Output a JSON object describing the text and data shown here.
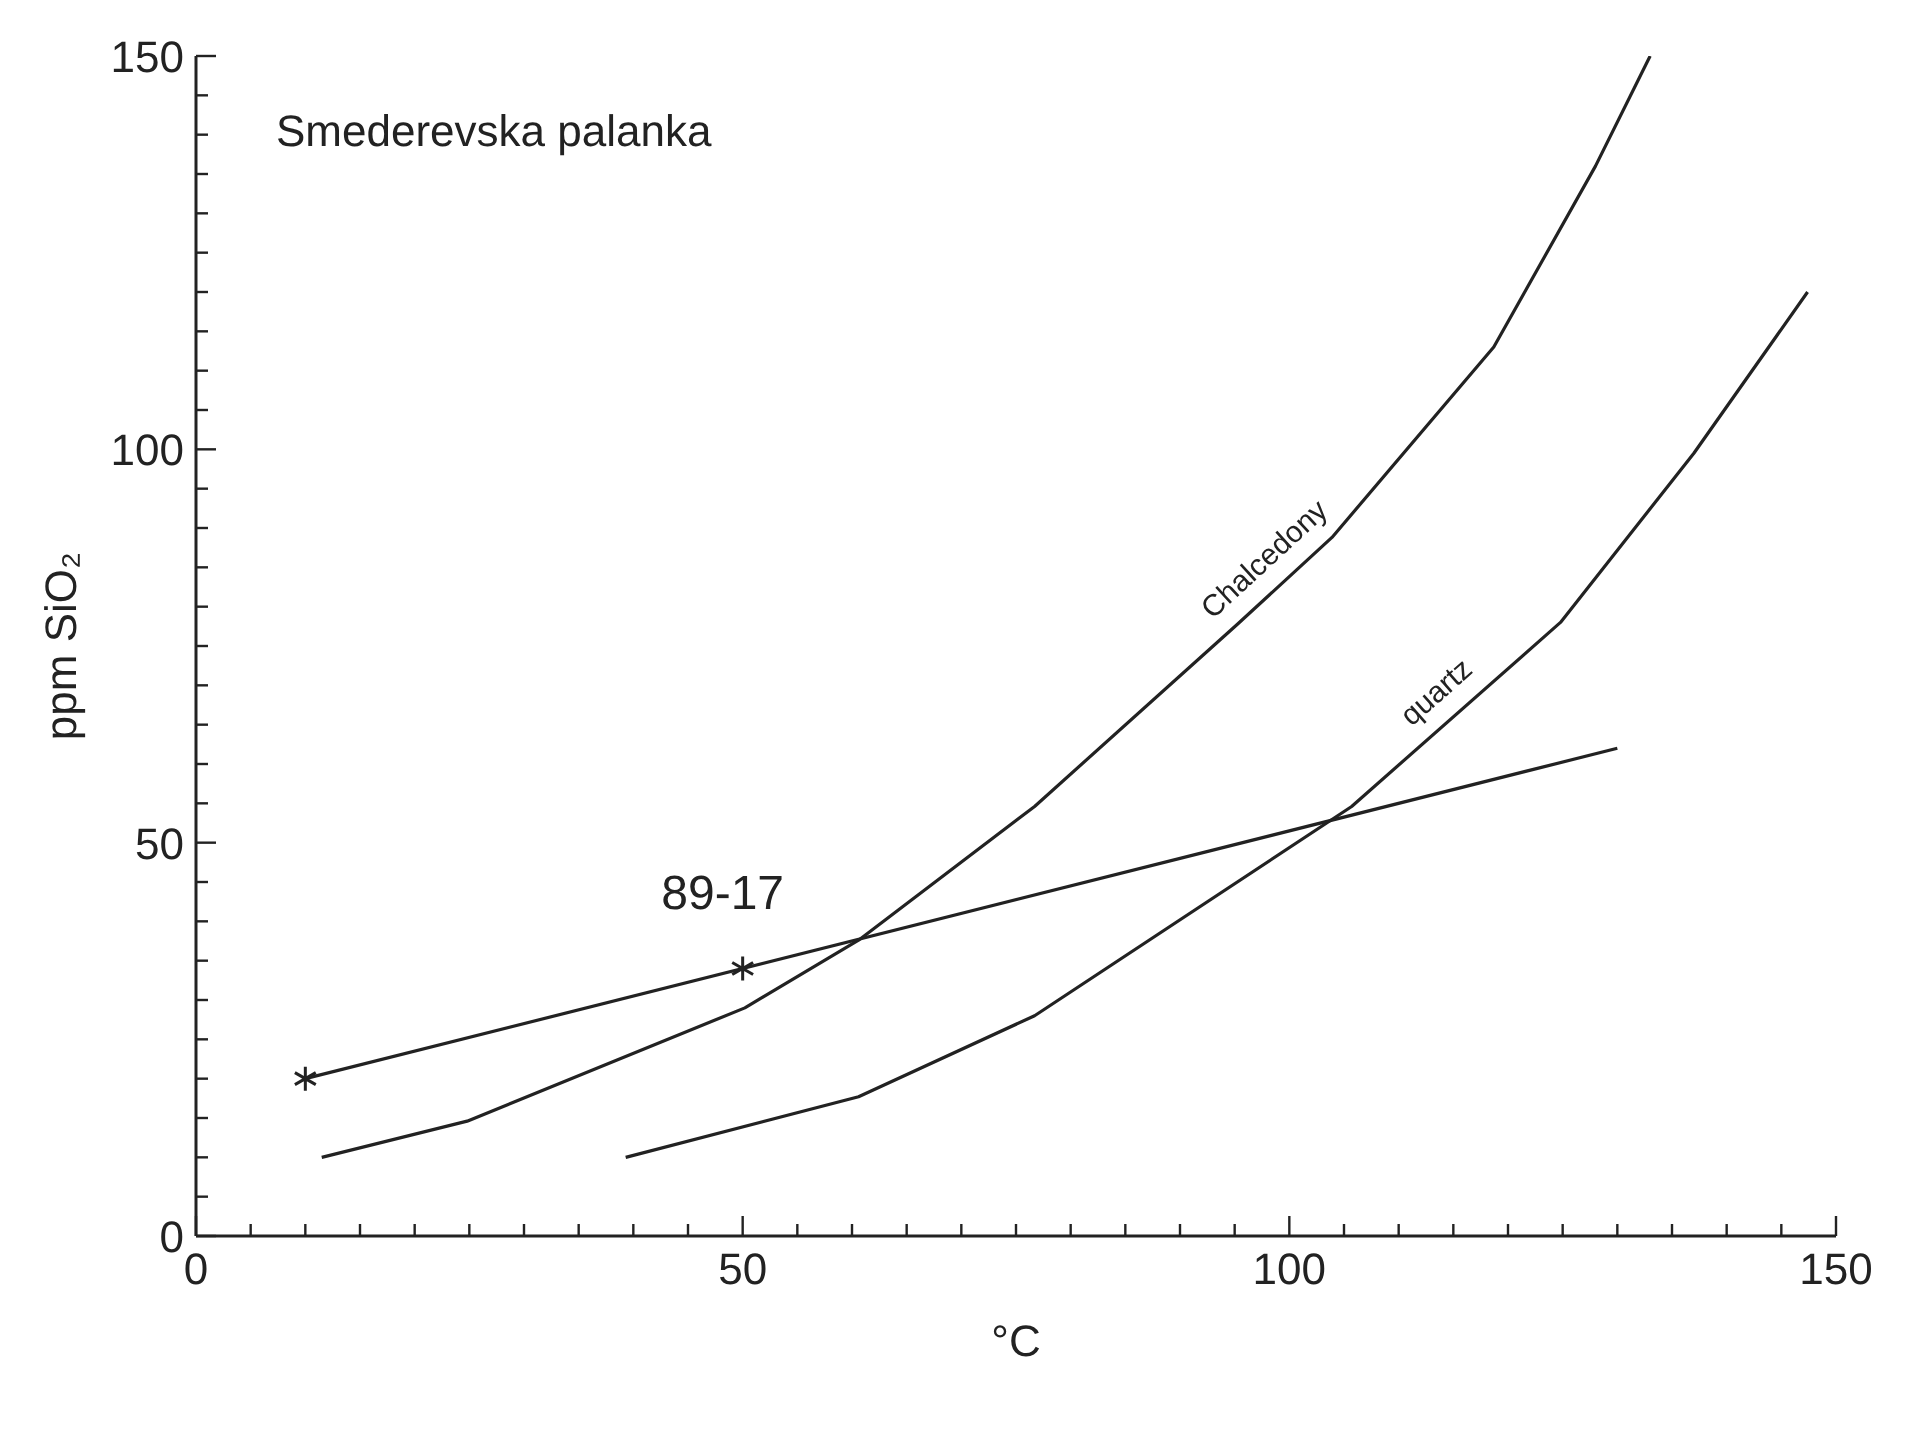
{
  "chart_data": {
    "type": "line",
    "xlabel": "°C",
    "ylabel": "ppm SiO₂",
    "xlim": [
      0,
      150
    ],
    "ylim": [
      0,
      150
    ],
    "xticks": [
      0,
      {
        "value": 5,
        "label": null
      },
      {
        "value": 10,
        "label": null
      },
      {
        "value": 15,
        "label": null
      },
      {
        "value": 20,
        "label": null
      },
      {
        "value": 25,
        "label": null
      },
      {
        "value": 30,
        "label": null
      },
      {
        "value": 35,
        "label": null
      },
      {
        "value": 40,
        "label": null
      },
      {
        "value": 45,
        "label": null
      },
      50,
      {
        "value": 55,
        "label": null
      },
      {
        "value": 60,
        "label": null
      },
      {
        "value": 65,
        "label": null
      },
      {
        "value": 70,
        "label": null
      },
      {
        "value": 75,
        "label": null
      },
      {
        "value": 80,
        "label": null
      },
      {
        "value": 85,
        "label": null
      },
      {
        "value": 90,
        "label": null
      },
      {
        "value": 95,
        "label": null
      },
      100,
      {
        "value": 105,
        "label": null
      },
      {
        "value": 110,
        "label": null
      },
      {
        "value": 115,
        "label": null
      },
      {
        "value": 120,
        "label": null
      },
      {
        "value": 125,
        "label": null
      },
      {
        "value": 130,
        "label": null
      },
      {
        "value": 135,
        "label": null
      },
      {
        "value": 140,
        "label": null
      },
      {
        "value": 145,
        "label": null
      },
      150
    ],
    "yticks": [
      0,
      {
        "value": 5,
        "label": null
      },
      {
        "value": 10,
        "label": null
      },
      {
        "value": 15,
        "label": null
      },
      {
        "value": 20,
        "label": null
      },
      {
        "value": 25,
        "label": null
      },
      {
        "value": 30,
        "label": null
      },
      {
        "value": 35,
        "label": null
      },
      {
        "value": 40,
        "label": null
      },
      {
        "value": 45,
        "label": null
      },
      50,
      {
        "value": 55,
        "label": null
      },
      {
        "value": 60,
        "label": null
      },
      {
        "value": 65,
        "label": null
      },
      {
        "value": 70,
        "label": null
      },
      {
        "value": 75,
        "label": null
      },
      {
        "value": 80,
        "label": null
      },
      {
        "value": 85,
        "label": null
      },
      {
        "value": 90,
        "label": null
      },
      {
        "value": 95,
        "label": null
      },
      100,
      {
        "value": 105,
        "label": null
      },
      {
        "value": 110,
        "label": null
      },
      {
        "value": 115,
        "label": null
      },
      {
        "value": 120,
        "label": null
      },
      {
        "value": 125,
        "label": null
      },
      {
        "value": 130,
        "label": null
      },
      {
        "value": 135,
        "label": null
      },
      {
        "value": 140,
        "label": null
      },
      {
        "value": 145,
        "label": null
      },
      150
    ],
    "grid": false,
    "legend": false,
    "line_style": "solid",
    "series": [
      {
        "name": "Chalcedony",
        "color": "#222222",
        "x": [
          11.5,
          24.8,
          50.2,
          60.6,
          76.7,
          95.2,
          103.9,
          118.7,
          128,
          133
        ],
        "values": [
          10,
          14.6,
          29,
          37.6,
          54.6,
          77.7,
          88.8,
          113,
          136,
          150
        ]
      },
      {
        "name": "quartz",
        "color": "#222222",
        "x": [
          39.3,
          60.6,
          76.7,
          105.7,
          124.8,
          137,
          147.4
        ],
        "values": [
          10,
          17.7,
          28,
          54.6,
          78,
          99.5,
          120
        ]
      },
      {
        "color": "#222222",
        "x": [
          10,
          130
        ],
        "values": [
          20,
          62
        ]
      },
      {
        "type": "scatter",
        "marker": "cross",
        "color": "#222222",
        "x": [
          10,
          50
        ],
        "values": [
          20,
          34
        ]
      }
    ],
    "annotations": [
      "Smederevska palanka",
      {
        "text": "89-17",
        "x": 50,
        "y": 34
      }
    ]
  }
}
